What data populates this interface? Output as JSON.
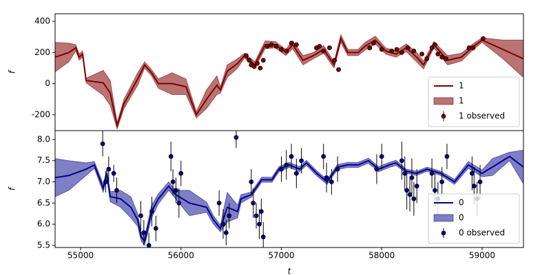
{
  "chart_data": [
    {
      "type": "line",
      "ylabel": "f",
      "xlim": [
        54746,
        59412
      ],
      "ylim": [
        -302,
        449
      ],
      "yticks": [
        -200,
        0,
        200,
        400
      ],
      "legend": "lower right",
      "series": [
        {
          "name": "1",
          "kind": "line",
          "color": "#800000",
          "x": [
            54746,
            54883,
            54952,
            54986,
            55020,
            55055,
            55226,
            55295,
            55364,
            55432,
            55569,
            55638,
            55707,
            55775,
            55912,
            56050,
            56153,
            56255,
            56358,
            56393,
            56461,
            56564,
            56633,
            56736,
            56839,
            56941,
            57044,
            57113,
            57216,
            57319,
            57422,
            57525,
            57593,
            57662,
            57765,
            57833,
            57936,
            58039,
            58142,
            58245,
            58348,
            58417,
            58520,
            58657,
            58794,
            58897,
            59000,
            59206,
            59412
          ],
          "values": [
            170,
            200,
            230,
            170,
            190,
            20,
            5,
            -60,
            -270,
            -130,
            30,
            120,
            70,
            0,
            0,
            -20,
            -200,
            -100,
            -10,
            -40,
            80,
            130,
            180,
            120,
            250,
            250,
            200,
            250,
            150,
            180,
            220,
            120,
            290,
            200,
            200,
            240,
            280,
            210,
            190,
            230,
            170,
            120,
            250,
            150,
            170,
            230,
            280,
            220,
            160
          ]
        },
        {
          "name": "1",
          "kind": "band",
          "color": "#800000",
          "alpha": 0.55,
          "x": [
            54746,
            54883,
            54952,
            54986,
            55020,
            55055,
            55226,
            55295,
            55364,
            55432,
            55569,
            55638,
            55707,
            55775,
            55912,
            56050,
            56153,
            56255,
            56358,
            56393,
            56461,
            56564,
            56633,
            56736,
            56839,
            56941,
            57044,
            57113,
            57216,
            57319,
            57422,
            57525,
            57593,
            57662,
            57765,
            57833,
            57936,
            58039,
            58142,
            58245,
            58348,
            58417,
            58520,
            58657,
            58794,
            58897,
            59000,
            59206,
            59412
          ],
          "lower": [
            75,
            140,
            210,
            150,
            170,
            5,
            -75,
            -140,
            -290,
            -160,
            -10,
            100,
            50,
            -30,
            -70,
            -70,
            -220,
            -160,
            -70,
            -60,
            40,
            100,
            165,
            100,
            225,
            230,
            180,
            225,
            120,
            160,
            195,
            100,
            265,
            180,
            180,
            215,
            255,
            190,
            170,
            205,
            140,
            95,
            230,
            120,
            145,
            210,
            265,
            160,
            40
          ],
          "upper": [
            265,
            260,
            250,
            190,
            210,
            35,
            85,
            20,
            -250,
            -100,
            70,
            140,
            90,
            30,
            70,
            30,
            -180,
            -40,
            50,
            -20,
            120,
            160,
            195,
            140,
            275,
            270,
            220,
            275,
            180,
            200,
            245,
            140,
            315,
            220,
            220,
            265,
            305,
            230,
            210,
            255,
            200,
            145,
            270,
            180,
            195,
            250,
            295,
            280,
            280
          ]
        },
        {
          "name": "1 observed",
          "kind": "errorbar",
          "color": "#800000",
          "x": [
            56650,
            56680,
            56700,
            56730,
            56760,
            56790,
            56820,
            56860,
            56900,
            56950,
            57000,
            57050,
            57100,
            57150,
            57350,
            57380,
            57420,
            57480,
            57530,
            57570,
            57880,
            57920,
            58000,
            58100,
            58150,
            58200,
            58260,
            58320,
            58400,
            58450,
            58500,
            58530,
            58560,
            58600,
            58640,
            58870,
            58910,
            59010
          ],
          "values": [
            180,
            150,
            120,
            110,
            130,
            100,
            150,
            240,
            250,
            240,
            220,
            210,
            260,
            250,
            230,
            240,
            210,
            230,
            150,
            90,
            230,
            260,
            220,
            210,
            220,
            200,
            230,
            210,
            190,
            160,
            230,
            250,
            190,
            170,
            160,
            230,
            230,
            290
          ],
          "errors": [
            12,
            12,
            12,
            12,
            12,
            12,
            12,
            12,
            12,
            12,
            12,
            12,
            12,
            12,
            12,
            12,
            12,
            12,
            12,
            12,
            12,
            12,
            12,
            12,
            12,
            12,
            12,
            12,
            12,
            12,
            12,
            12,
            12,
            12,
            12,
            12,
            12,
            12
          ]
        }
      ]
    },
    {
      "type": "line",
      "ylabel": "f",
      "xlabel": "t",
      "xlim": [
        54746,
        59412
      ],
      "ylim": [
        5.45,
        8.21
      ],
      "xticks": [
        55000,
        56000,
        57000,
        58000,
        59000
      ],
      "yticks": [
        {
          "value": 5.5,
          "label": "5.5"
        },
        {
          "value": 6,
          "label": "6.0"
        },
        {
          "value": 6.5,
          "label": "6.5"
        },
        {
          "value": 7,
          "label": "7.0"
        },
        {
          "value": 7.5,
          "label": "7.5"
        },
        {
          "value": 8,
          "label": "8.0"
        }
      ],
      "legend": "lower right",
      "series": [
        {
          "name": "0",
          "kind": "line",
          "color": "#00008b",
          "x": [
            54746,
            54883,
            55055,
            55137,
            55226,
            55261,
            55295,
            55398,
            55501,
            55569,
            55604,
            55638,
            55707,
            55775,
            55878,
            55946,
            56084,
            56255,
            56324,
            56393,
            56461,
            56564,
            56598,
            56701,
            56804,
            56907,
            56976,
            57079,
            57182,
            57250,
            57353,
            57456,
            57559,
            57662,
            57765,
            57868,
            57970,
            58074,
            58142,
            58245,
            58348,
            58451,
            58588,
            58725,
            58863,
            59000,
            59103,
            59274,
            59412
          ],
          "values": [
            7.1,
            7.15,
            7.3,
            7.4,
            6.85,
            7.2,
            6.65,
            6.6,
            6.4,
            6.1,
            5.7,
            5.6,
            6.3,
            6.6,
            6.9,
            6.7,
            6.5,
            6.4,
            6.1,
            5.9,
            6.4,
            6.3,
            6.6,
            6.7,
            7.05,
            7.05,
            7.3,
            7.4,
            7.3,
            7.45,
            7.2,
            7.0,
            7.35,
            7.4,
            7.4,
            7.5,
            7.3,
            7.4,
            7.45,
            7.25,
            7.2,
            7.3,
            7.2,
            7.0,
            7.4,
            7.2,
            7.35,
            7.6,
            7.35
          ]
        },
        {
          "name": "0",
          "kind": "band",
          "color": "#00008b",
          "alpha": 0.5,
          "x": [
            54746,
            54883,
            55055,
            55137,
            55226,
            55261,
            55295,
            55398,
            55501,
            55569,
            55604,
            55638,
            55707,
            55775,
            55878,
            55946,
            56084,
            56255,
            56324,
            56393,
            56461,
            56564,
            56598,
            56701,
            56804,
            56907,
            56976,
            57079,
            57182,
            57250,
            57353,
            57456,
            57559,
            57662,
            57765,
            57868,
            57970,
            58074,
            58142,
            58245,
            58348,
            58451,
            58588,
            58725,
            58863,
            59000,
            59103,
            59274,
            59412
          ],
          "lower": [
            6.65,
            6.8,
            7.15,
            7.32,
            6.75,
            7.1,
            6.53,
            6.4,
            6.15,
            5.95,
            5.6,
            5.5,
            6.15,
            6.48,
            6.8,
            6.6,
            6.2,
            6.28,
            6.0,
            5.82,
            6.05,
            6.15,
            6.5,
            6.64,
            6.99,
            6.99,
            7.24,
            7.34,
            7.24,
            7.39,
            7.14,
            6.94,
            7.29,
            7.34,
            7.34,
            7.44,
            7.24,
            7.34,
            7.39,
            7.2,
            7.15,
            7.25,
            7.15,
            6.94,
            7.32,
            7.12,
            7.15,
            7.5,
            6.95
          ],
          "upper": [
            7.55,
            7.5,
            7.45,
            7.48,
            6.95,
            7.3,
            6.77,
            6.8,
            6.65,
            6.25,
            5.8,
            5.7,
            6.45,
            6.72,
            7.0,
            6.8,
            6.8,
            6.52,
            6.2,
            5.98,
            6.75,
            6.45,
            6.7,
            6.76,
            7.11,
            7.11,
            7.36,
            7.46,
            7.36,
            7.51,
            7.26,
            7.06,
            7.41,
            7.46,
            7.46,
            7.56,
            7.36,
            7.46,
            7.51,
            7.3,
            7.25,
            7.35,
            7.25,
            7.06,
            7.48,
            7.28,
            7.55,
            7.7,
            7.75
          ]
        },
        {
          "name": "0 observed",
          "kind": "errorbar",
          "color": "#00008b",
          "x": [
            55220,
            55250,
            55280,
            55330,
            55360,
            55600,
            55630,
            55680,
            55710,
            55750,
            55900,
            55920,
            55950,
            55980,
            56000,
            56380,
            56420,
            56450,
            56480,
            56550,
            56700,
            56720,
            56750,
            56780,
            56800,
            56820,
            57000,
            57050,
            57100,
            57150,
            57200,
            57420,
            57450,
            57500,
            57560,
            57950,
            58000,
            58200,
            58230,
            58250,
            58280,
            58300,
            58320,
            58350,
            58500,
            58530,
            58560,
            58600,
            58650,
            58900,
            58920,
            58950,
            58980
          ],
          "values": [
            7.9,
            7.0,
            7.3,
            7.2,
            6.8,
            6.2,
            5.8,
            5.5,
            6.3,
            5.9,
            7.6,
            7.0,
            6.8,
            6.5,
            7.2,
            6.5,
            6.0,
            5.8,
            6.2,
            8.05,
            7.0,
            6.5,
            6.2,
            6.0,
            6.3,
            5.7,
            7.3,
            7.4,
            7.6,
            7.2,
            7.5,
            7.6,
            7.1,
            7.0,
            7.3,
            7.3,
            7.6,
            7.5,
            7.2,
            6.8,
            6.7,
            7.1,
            6.6,
            6.9,
            7.2,
            6.8,
            6.6,
            7.0,
            7.6,
            7.2,
            6.9,
            6.6,
            7.0
          ],
          "errors": [
            0.3,
            0.25,
            0.3,
            0.2,
            0.3,
            0.35,
            0.3,
            0.3,
            0.35,
            0.3,
            0.35,
            0.3,
            0.3,
            0.35,
            0.3,
            0.3,
            0.35,
            0.3,
            0.3,
            0.25,
            0.3,
            0.35,
            0.3,
            0.35,
            0.3,
            0.35,
            0.3,
            0.35,
            0.3,
            0.35,
            0.3,
            0.3,
            0.35,
            0.3,
            0.3,
            0.35,
            0.3,
            0.45,
            0.4,
            0.45,
            0.4,
            0.45,
            0.4,
            0.4,
            0.35,
            0.4,
            0.4,
            0.35,
            0.3,
            0.4,
            0.45,
            0.4,
            0.4
          ]
        }
      ]
    }
  ]
}
